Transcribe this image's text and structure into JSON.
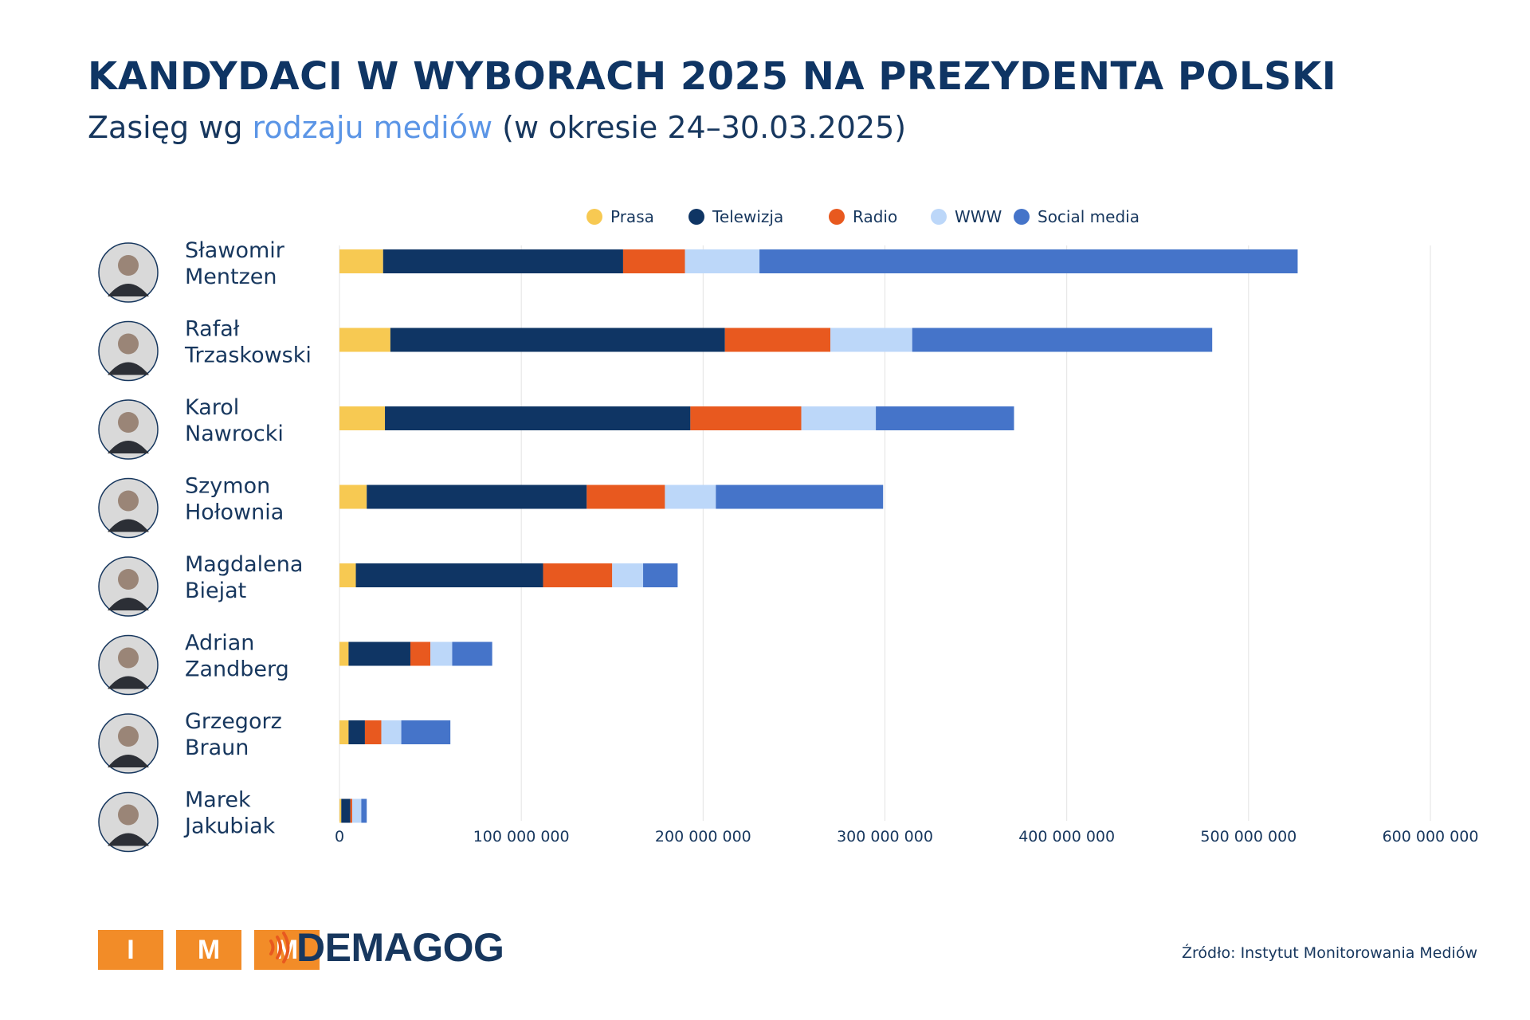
{
  "header": {
    "title": "KANDYDACI W WYBORACH 2025 NA PREZYDENTA POLSKI",
    "subtitle_prefix": "Zasięg wg ",
    "subtitle_highlight": "rodzaju mediów",
    "subtitle_suffix": " (w okresie 24–30.03.2025)"
  },
  "footer": {
    "source": "Źródło: Instytut Monitorowania Mediów",
    "logo_imm_letters": [
      "I",
      "M",
      "M"
    ],
    "logo_demagog": "DEMAGOG"
  },
  "colors": {
    "Prasa": "#f7c952",
    "Telewizja": "#0f3564",
    "Radio": "#e8591f",
    "WWW": "#bcd7f9",
    "Social media": "#4574c9",
    "accent": "#5b95e6",
    "brand_orange": "#f28c28"
  },
  "chart_data": {
    "type": "bar",
    "orientation": "horizontal",
    "stacked": true,
    "categories": [
      [
        "Sławomir",
        "Mentzen"
      ],
      [
        "Rafał",
        "Trzaskowski"
      ],
      [
        "Karol",
        "Nawrocki"
      ],
      [
        "Szymon",
        "Hołownia"
      ],
      [
        "Magdalena",
        "Biejat"
      ],
      [
        "Adrian",
        "Zandberg"
      ],
      [
        "Grzegorz",
        "Braun"
      ],
      [
        "Marek",
        "Jakubiak"
      ]
    ],
    "series": [
      {
        "name": "Prasa",
        "values": [
          24000000,
          28000000,
          25000000,
          15000000,
          9000000,
          5000000,
          5000000,
          1000000
        ]
      },
      {
        "name": "Telewizja",
        "values": [
          132000000,
          184000000,
          168000000,
          121000000,
          103000000,
          34000000,
          9000000,
          5000000
        ]
      },
      {
        "name": "Radio",
        "values": [
          34000000,
          58000000,
          61000000,
          43000000,
          38000000,
          11000000,
          9000000,
          1000000
        ]
      },
      {
        "name": "WWW",
        "values": [
          41000000,
          45000000,
          41000000,
          28000000,
          17000000,
          12000000,
          11000000,
          5000000
        ]
      },
      {
        "name": "Social media",
        "values": [
          296000000,
          165000000,
          76000000,
          92000000,
          19000000,
          22000000,
          27000000,
          3000000
        ]
      }
    ],
    "xlim": [
      0,
      600000000
    ],
    "xticks": [
      0,
      100000000,
      200000000,
      300000000,
      400000000,
      500000000,
      600000000
    ],
    "xtick_labels": [
      "0",
      "100 000 000",
      "200 000 000",
      "300 000 000",
      "400 000 000",
      "500 000 000",
      "600 000 000"
    ],
    "legend_position": "top",
    "grid": "vertical"
  }
}
